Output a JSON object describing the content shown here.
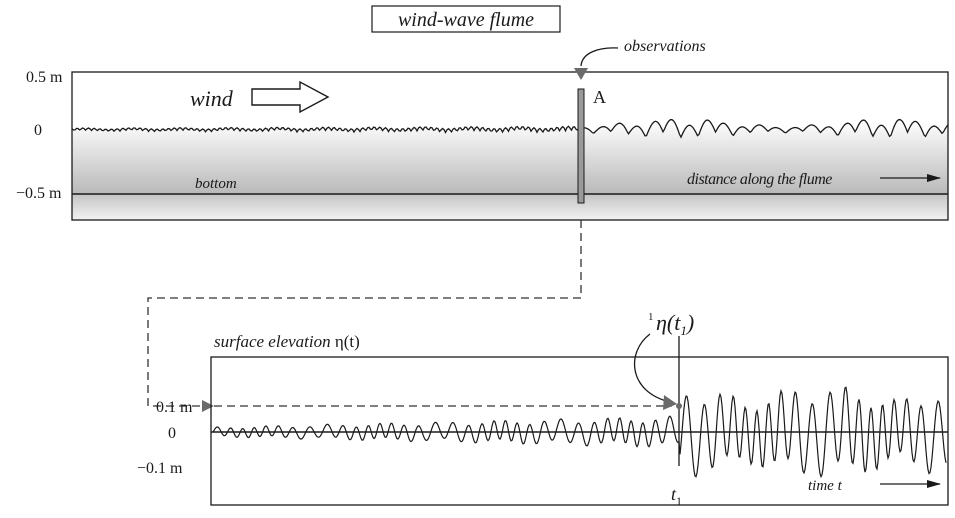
{
  "title": "wind-wave flume",
  "flume": {
    "tick_labels": [
      "0.5 m",
      "0",
      "−0.5 m"
    ],
    "wind_label": "wind",
    "probe_label": "A",
    "observations_label": "observations",
    "bottom_label": "bottom",
    "distance_label": "distance along the flume"
  },
  "record": {
    "title_text": "surface elevation ",
    "title_symbol": "η(t)",
    "tick_labels": [
      "0.1 m",
      "0",
      "−0.1 m"
    ],
    "marker_label_sup": "1",
    "marker_label": "η(t1)",
    "t1_label": "t1",
    "time_label": "time  t"
  },
  "colors": {
    "frame": "#1a1a1a",
    "water_top": "#ffffff",
    "water_bottom": "#b8b8b8",
    "bed_top": "#c8c8c8",
    "probe": "#9a9a9a",
    "arrow": "#6a6a6a",
    "dashed": "#333333"
  }
}
